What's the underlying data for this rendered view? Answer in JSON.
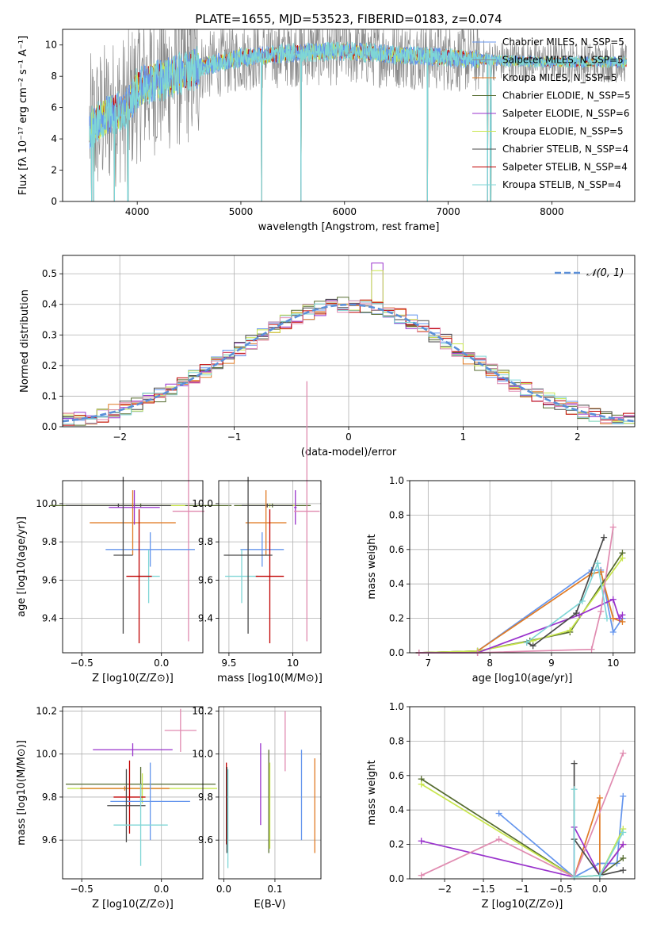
{
  "figure": {
    "title": "PLATE=1655, MJD=53523, FIBERID=0183, z=0.074",
    "colors": {
      "chabrier_miles": "#6495ED",
      "salpeter_miles": "#8A8A8A",
      "kroupa_miles": "#E07B25",
      "chabrier_elodie": "#556B2F",
      "salpeter_elodie": "#9932CC",
      "kroupa_elodie": "#C8E64C",
      "chabrier_stelib": "#4A4A4A",
      "salpeter_stelib": "#C00000",
      "kroupa_stelib": "#7FD6D6",
      "pink": "#E08BB0",
      "normal_curve": "#5B8FD8",
      "grid": "#B0B0B0"
    }
  },
  "chart_data": [
    {
      "id": "spectrum",
      "type": "line",
      "title": "PLATE=1655, MJD=53523, FIBERID=0183, z=0.074",
      "xlabel": "wavelength [Angstrom, rest frame]",
      "ylabel": "Flux [fλ 10⁻¹⁷ erg cm⁻² s⁻¹ A⁻¹]",
      "xlim": [
        3280,
        8800
      ],
      "ylim": [
        0,
        11
      ],
      "xticks": [
        4000,
        5000,
        6000,
        7000,
        8000
      ],
      "yticks": [
        0,
        2,
        4,
        6,
        8,
        10
      ],
      "grid": false,
      "legend_position": "right",
      "legend": [
        "Chabrier MILES, N_SSP=5",
        "Salpeter MILES, N_SSP=5",
        "Kroupa MILES, N_SSP=5",
        "Chabrier ELODIE, N_SSP=5",
        "Salpeter ELODIE, N_SSP=6",
        "Kroupa ELODIE, N_SSP=5",
        "Chabrier STELIB, N_SSP=4",
        "Salpeter STELIB, N_SSP=4",
        "Kroupa STELIB, N_SSP=4"
      ],
      "legend_colors": [
        "#6495ED",
        "#8A8A8A",
        "#E07B25",
        "#556B2F",
        "#9932CC",
        "#C8E64C",
        "#4A4A4A",
        "#C00000",
        "#7FD6D6"
      ],
      "data_range_x": [
        3540,
        8720
      ],
      "continuum_x": [
        3540,
        3700,
        3900,
        4000,
        4100,
        4300,
        4500,
        5000,
        5500,
        6000,
        6500,
        7000,
        7500,
        8000,
        8700
      ],
      "continuum_y": [
        4.6,
        5.5,
        6.0,
        7.2,
        7.6,
        7.9,
        8.4,
        9.2,
        9.5,
        9.6,
        9.4,
        9.2,
        9.0,
        8.9,
        8.9
      ],
      "absorption_lines_x": [
        3560,
        3580,
        3780,
        3910,
        5200,
        5580,
        6800,
        7380,
        7410
      ]
    },
    {
      "id": "residuals",
      "type": "histogram",
      "xlabel": "(data-model)/error",
      "ylabel": "Normed distribution",
      "xlim": [
        -2.5,
        2.5
      ],
      "ylim": [
        0,
        0.56
      ],
      "xticks": [
        -2,
        -1,
        0,
        1,
        2
      ],
      "yticks": [
        0.0,
        0.1,
        0.2,
        0.3,
        0.4,
        0.5
      ],
      "grid": true,
      "legend_position": "top-right",
      "legend": [
        "𝒩(0, 1)"
      ],
      "bin_width": 0.1,
      "bin_edges_start": -2.5
    },
    {
      "id": "z_age",
      "type": "errorbar",
      "xlabel": "Z [log10(Z/Z⊙)]",
      "ylabel": "age  [log10(age/yr)]",
      "xlim": [
        -0.62,
        0.26
      ],
      "ylim": [
        9.22,
        10.12
      ],
      "xticks": [
        -0.5,
        0.0
      ],
      "yticks": [
        9.4,
        9.6,
        9.8,
        10.0
      ],
      "grid": true,
      "points": [
        {
          "x": -0.13,
          "xerr": 0.57,
          "y": 9.99,
          "yerr": 0.01,
          "c": "#556B2F"
        },
        {
          "x": -0.18,
          "xerr": 0.33,
          "y": 9.99,
          "yerr": 0.01,
          "c": "#C8E64C"
        },
        {
          "x": -0.27,
          "xerr": 0.33,
          "y": 9.99,
          "yerr": 0.01,
          "c": "#4A4A4A"
        },
        {
          "x": -0.18,
          "xerr": 0.27,
          "y": 9.9,
          "yerr": 0.17,
          "c": "#E07B25"
        },
        {
          "x": -0.17,
          "xerr": 0.16,
          "y": 9.98,
          "yerr": 0.09,
          "c": "#9932CC"
        },
        {
          "x": 0.17,
          "xerr": 0.1,
          "y": 9.96,
          "yerr": 0.68,
          "c": "#E08BB0"
        },
        {
          "x": -0.07,
          "xerr": 0.28,
          "y": 9.76,
          "yerr": 0.09,
          "c": "#6495ED"
        },
        {
          "x": -0.08,
          "xerr": 0.07,
          "y": 9.62,
          "yerr": 0.14,
          "c": "#7FD6D6"
        },
        {
          "x": -0.14,
          "xerr": 0.08,
          "y": 9.62,
          "yerr": 0.35,
          "c": "#C00000"
        },
        {
          "x": -0.24,
          "xerr": 0.06,
          "y": 9.73,
          "yerr": 0.41,
          "c": "#4A4A4A"
        }
      ]
    },
    {
      "id": "mass_age",
      "type": "errorbar",
      "xlabel": "mass [log10(M/M⊙)]",
      "ylabel": "",
      "xlim": [
        9.42,
        10.22
      ],
      "ylim": [
        9.22,
        10.12
      ],
      "xticks": [
        9.5,
        10.0
      ],
      "yticks": [
        9.4,
        9.6,
        9.8,
        10.0
      ],
      "grid": true,
      "points": [
        {
          "x": 9.84,
          "xerr": 0.3,
          "y": 9.99,
          "yerr": 0.01,
          "c": "#556B2F"
        },
        {
          "x": 9.82,
          "xerr": 0.2,
          "y": 9.99,
          "yerr": 0.01,
          "c": "#C8E64C"
        },
        {
          "x": 9.8,
          "xerr": 0.2,
          "y": 9.99,
          "yerr": 0.01,
          "c": "#4A4A4A"
        },
        {
          "x": 9.79,
          "xerr": 0.16,
          "y": 9.9,
          "yerr": 0.17,
          "c": "#E07B25"
        },
        {
          "x": 10.02,
          "xerr": 0.01,
          "y": 9.98,
          "yerr": 0.09,
          "c": "#9932CC"
        },
        {
          "x": 10.11,
          "xerr": 0.1,
          "y": 9.96,
          "yerr": 0.68,
          "c": "#E08BB0"
        },
        {
          "x": 9.76,
          "xerr": 0.17,
          "y": 9.76,
          "yerr": 0.09,
          "c": "#6495ED"
        },
        {
          "x": 9.6,
          "xerr": 0.13,
          "y": 9.62,
          "yerr": 0.14,
          "c": "#7FD6D6"
        },
        {
          "x": 9.82,
          "xerr": 0.11,
          "y": 9.62,
          "yerr": 0.35,
          "c": "#C00000"
        },
        {
          "x": 9.65,
          "xerr": 0.19,
          "y": 9.73,
          "yerr": 0.41,
          "c": "#4A4A4A"
        }
      ]
    },
    {
      "id": "age_weight",
      "type": "line",
      "xlabel": "age  [log10(age/yr)]",
      "ylabel": "mass weight",
      "xlim": [
        6.7,
        10.35
      ],
      "ylim": [
        0.0,
        1.0
      ],
      "xticks": [
        7,
        8,
        9,
        10
      ],
      "yticks": [
        0.0,
        0.2,
        0.4,
        0.6,
        0.8,
        1.0
      ],
      "grid": true,
      "series": [
        {
          "c": "#6495ED",
          "x": [
            6.85,
            7.8,
            9.65,
            9.8,
            10.0,
            10.15
          ],
          "y": [
            0.0,
            0.01,
            0.48,
            0.48,
            0.12,
            0.2
          ]
        },
        {
          "c": "#E07B25",
          "x": [
            6.85,
            7.8,
            9.65,
            9.8,
            10.0,
            10.15
          ],
          "y": [
            0.0,
            0.01,
            0.46,
            0.47,
            0.2,
            0.18
          ]
        },
        {
          "c": "#556B2F",
          "x": [
            6.85,
            7.8,
            8.65,
            9.3,
            10.15
          ],
          "y": [
            0.0,
            0.01,
            0.07,
            0.12,
            0.58
          ]
        },
        {
          "c": "#C8E64C",
          "x": [
            6.85,
            7.8,
            8.7,
            9.3,
            10.15
          ],
          "y": [
            0.0,
            0.01,
            0.07,
            0.13,
            0.55
          ]
        },
        {
          "c": "#9932CC",
          "x": [
            6.85,
            7.8,
            9.45,
            10.0,
            10.1,
            10.15
          ],
          "y": [
            0.0,
            0.0,
            0.22,
            0.31,
            0.2,
            0.22
          ]
        },
        {
          "c": "#E08BB0",
          "x": [
            6.85,
            7.8,
            9.65,
            9.8,
            10.0
          ],
          "y": [
            0.0,
            0.0,
            0.02,
            0.24,
            0.73
          ]
        },
        {
          "c": "#4A4A4A",
          "x": [
            8.6,
            8.7,
            9.4,
            9.85
          ],
          "y": [
            0.06,
            0.04,
            0.23,
            0.67
          ]
        },
        {
          "c": "#7FD6D6",
          "x": [
            8.6,
            9.5,
            9.75,
            9.9
          ],
          "y": [
            0.06,
            0.3,
            0.52,
            0.2
          ]
        }
      ]
    },
    {
      "id": "z_mass",
      "type": "errorbar",
      "xlabel": "Z [log10(Z/Z⊙)]",
      "ylabel": "mass [log10(M/M⊙)]",
      "xlim": [
        -0.62,
        0.26
      ],
      "ylim": [
        9.42,
        10.22
      ],
      "xticks": [
        -0.5,
        0.0
      ],
      "yticks": [
        9.6,
        9.8,
        10.0,
        10.2
      ],
      "grid": true,
      "points": [
        {
          "x": 0.12,
          "xerr": 0.1,
          "y": 10.11,
          "yerr": 0.1,
          "c": "#E08BB0"
        },
        {
          "x": -0.18,
          "xerr": 0.25,
          "y": 10.02,
          "yerr": 0.03,
          "c": "#9932CC"
        },
        {
          "x": -0.13,
          "xerr": 0.47,
          "y": 9.86,
          "yerr": 0.08,
          "c": "#556B2F"
        },
        {
          "x": -0.12,
          "xerr": 0.47,
          "y": 9.84,
          "yerr": 0.07,
          "c": "#C8E64C"
        },
        {
          "x": -0.23,
          "xerr": 0.28,
          "y": 9.84,
          "yerr": 0.01,
          "c": "#E07B25"
        },
        {
          "x": -0.2,
          "xerr": 0.1,
          "y": 9.8,
          "yerr": 0.17,
          "c": "#C00000"
        },
        {
          "x": -0.07,
          "xerr": 0.25,
          "y": 9.78,
          "yerr": 0.18,
          "c": "#6495ED"
        },
        {
          "x": -0.22,
          "xerr": 0.12,
          "y": 9.76,
          "yerr": 0.17,
          "c": "#4A4A4A"
        },
        {
          "x": -0.13,
          "xerr": 0.17,
          "y": 9.67,
          "yerr": 0.19,
          "c": "#7FD6D6"
        }
      ]
    },
    {
      "id": "ebv_mass",
      "type": "errorbar",
      "xlabel": "E(B-V)",
      "ylabel": "",
      "xlim": [
        -0.01,
        0.19
      ],
      "ylim": [
        9.42,
        10.22
      ],
      "xticks": [
        0.0,
        0.1
      ],
      "yticks": [
        9.6,
        9.8,
        10.0,
        10.2
      ],
      "grid": true,
      "points": [
        {
          "x": 0.005,
          "y": 9.77,
          "yerr": 0.19,
          "c": "#C00000"
        },
        {
          "x": 0.006,
          "y": 9.74,
          "yerr": 0.2,
          "c": "#4A4A4A"
        },
        {
          "x": 0.008,
          "y": 9.7,
          "yerr": 0.23,
          "c": "#7FD6D6"
        },
        {
          "x": 0.072,
          "y": 9.86,
          "yerr": 0.19,
          "c": "#9932CC"
        },
        {
          "x": 0.088,
          "y": 9.78,
          "yerr": 0.24,
          "c": "#556B2F"
        },
        {
          "x": 0.09,
          "y": 9.76,
          "yerr": 0.2,
          "c": "#C8E64C"
        },
        {
          "x": 0.12,
          "y": 10.06,
          "yerr": 0.14,
          "c": "#E08BB0"
        },
        {
          "x": 0.152,
          "y": 9.81,
          "yerr": 0.21,
          "c": "#6495ED"
        },
        {
          "x": 0.178,
          "y": 9.76,
          "yerr": 0.22,
          "c": "#E07B25"
        }
      ]
    },
    {
      "id": "z_weight",
      "type": "line",
      "xlabel": "Z [log10(Z/Z⊙)]",
      "ylabel": "mass weight",
      "xlim": [
        -2.45,
        0.45
      ],
      "ylim": [
        0.0,
        1.0
      ],
      "xticks": [
        -2.0,
        -1.5,
        -1.0,
        -0.5,
        0.0
      ],
      "yticks": [
        0.0,
        0.2,
        0.4,
        0.6,
        0.8,
        1.0
      ],
      "grid": true,
      "series": [
        {
          "c": "#6495ED",
          "x": [
            -1.3,
            -0.33,
            0.0,
            0.22,
            0.3
          ],
          "y": [
            0.38,
            0.01,
            0.09,
            0.09,
            0.48
          ]
        },
        {
          "c": "#E07B25",
          "x": [
            -0.33,
            0.0,
            0.0,
            0.3
          ],
          "y": [
            0.01,
            0.47,
            0.02,
            0.2
          ]
        },
        {
          "c": "#556B2F",
          "x": [
            -2.3,
            -0.33,
            0.0,
            0.3
          ],
          "y": [
            0.58,
            0.01,
            0.02,
            0.12
          ]
        },
        {
          "c": "#C8E64C",
          "x": [
            -2.3,
            -0.33,
            0.0,
            0.3
          ],
          "y": [
            0.55,
            0.01,
            0.02,
            0.29
          ]
        },
        {
          "c": "#9932CC",
          "x": [
            -2.3,
            -0.33,
            -0.33,
            0.0,
            0.3
          ],
          "y": [
            0.22,
            0.01,
            0.3,
            0.02,
            0.2
          ]
        },
        {
          "c": "#E08BB0",
          "x": [
            -2.3,
            -1.3,
            -0.33,
            0.3
          ],
          "y": [
            0.02,
            0.23,
            0.01,
            0.73
          ]
        },
        {
          "c": "#4A4A4A",
          "x": [
            -0.33,
            -0.33,
            0.0,
            0.3
          ],
          "y": [
            0.67,
            0.23,
            0.02,
            0.05
          ]
        },
        {
          "c": "#7FD6D6",
          "x": [
            -0.33,
            -0.33,
            0.0,
            0.3
          ],
          "y": [
            0.52,
            0.01,
            0.02,
            0.27
          ]
        }
      ]
    }
  ]
}
